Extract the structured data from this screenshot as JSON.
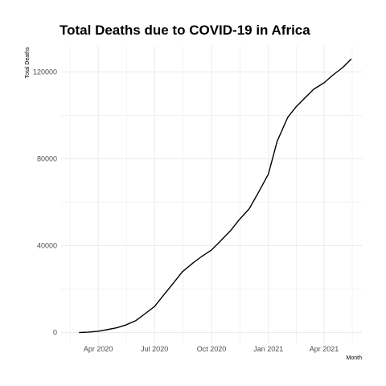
{
  "chart_data": {
    "type": "line",
    "title": "Total Deaths due to COVID-19 in Africa",
    "xlabel": "Month",
    "ylabel": "Total Deaths",
    "x_ticks": [
      "Apr 2020",
      "Jul 2020",
      "Oct 2020",
      "Jan 2021",
      "Apr 2021"
    ],
    "y_ticks": [
      "0",
      "40000",
      "80000",
      "120000"
    ],
    "ylim": [
      -5000,
      132000
    ],
    "xlim": [
      "2020-02-01",
      "2021-06-01"
    ],
    "grid": true,
    "line_color": "#000000",
    "series": [
      {
        "x": [
          "2020-03-01",
          "2020-03-15",
          "2020-04-01",
          "2020-04-15",
          "2020-05-01",
          "2020-05-15",
          "2020-06-01",
          "2020-06-15",
          "2020-07-01",
          "2020-07-15",
          "2020-08-01",
          "2020-08-15",
          "2020-09-01",
          "2020-09-15",
          "2020-10-01",
          "2020-10-15",
          "2020-11-01",
          "2020-11-15",
          "2020-12-01",
          "2020-12-15",
          "2021-01-01",
          "2021-01-15",
          "2021-02-01",
          "2021-02-15",
          "2021-03-01",
          "2021-03-15",
          "2021-04-01",
          "2021-04-15",
          "2021-05-01",
          "2021-05-15"
        ],
        "values": [
          0,
          150,
          600,
          1300,
          2200,
          3400,
          5500,
          8500,
          12000,
          17000,
          23000,
          28000,
          32000,
          35000,
          38000,
          42000,
          47000,
          52000,
          57000,
          64000,
          73000,
          88000,
          99000,
          104000,
          108000,
          112000,
          115000,
          118500,
          122000,
          126000
        ]
      }
    ]
  }
}
